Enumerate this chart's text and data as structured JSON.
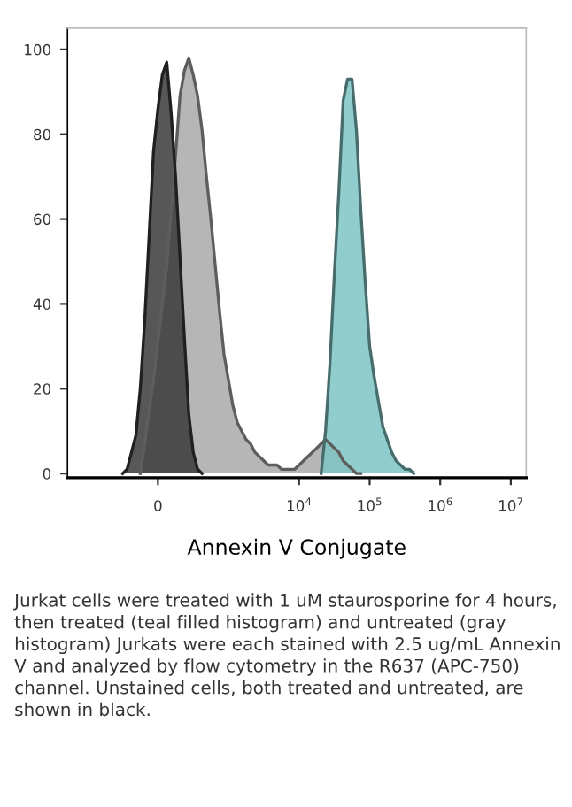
{
  "chart_data": {
    "type": "area",
    "xlabel": "Annexin V Conjugate",
    "categories": [
      null,
      null,
      null,
      null,
      null,
      null,
      null,
      null,
      null,
      null,
      null,
      null,
      null,
      null,
      null,
      null,
      null,
      null,
      null,
      null,
      "0",
      null,
      null,
      null,
      null,
      null,
      null,
      null,
      null,
      null,
      null,
      null,
      null,
      null,
      null,
      null,
      null,
      null,
      null,
      null,
      null,
      null,
      null,
      null,
      null,
      null,
      null,
      null,
      null,
      null,
      null,
      null,
      "10$^{4}$",
      null,
      null,
      null,
      null,
      null,
      null,
      null,
      null,
      null,
      null,
      null,
      null,
      null,
      null,
      null,
      "10$^{5}$",
      null,
      null,
      null,
      null,
      null,
      null,
      null,
      null,
      null,
      null,
      null,
      null,
      null,
      null,
      null,
      "10$^{6}$",
      null,
      null,
      null,
      null,
      null,
      null,
      null,
      null,
      null,
      null,
      null,
      null,
      null,
      null,
      null,
      "10$^{7}$",
      null,
      null,
      null
    ],
    "ylim": [
      -1,
      105
    ],
    "yticks": [
      0,
      20,
      40,
      60,
      80,
      100
    ],
    "grid": false,
    "legend": false,
    "series": [
      {
        "color": "#a9a9a9",
        "values": [
          null,
          null,
          null,
          null,
          null,
          null,
          null,
          null,
          null,
          null,
          null,
          null,
          null,
          null,
          null,
          null,
          0,
          7,
          15,
          22,
          31,
          40,
          49,
          62,
          75,
          89,
          95,
          98,
          94,
          89,
          81,
          70,
          60,
          49,
          38,
          28,
          22,
          16,
          12,
          10,
          8,
          7,
          5,
          4,
          3,
          2,
          2,
          2,
          1,
          1,
          1,
          1,
          2,
          3,
          4,
          5,
          6,
          7,
          8,
          7,
          6,
          5,
          3,
          2,
          1,
          0,
          0,
          null,
          null,
          null,
          null,
          null,
          null,
          null,
          null,
          null,
          null,
          null,
          null,
          null,
          null,
          null,
          null,
          null,
          null,
          null,
          null,
          null,
          null,
          null,
          null,
          null,
          null,
          null,
          null,
          null,
          null,
          null,
          null,
          null,
          null,
          null,
          null,
          null
        ]
      },
      {
        "color": "#7fc4c4",
        "values": [
          null,
          null,
          null,
          null,
          null,
          null,
          null,
          null,
          null,
          null,
          null,
          null,
          null,
          null,
          null,
          null,
          null,
          null,
          null,
          null,
          null,
          null,
          null,
          null,
          null,
          null,
          null,
          null,
          null,
          null,
          null,
          null,
          null,
          null,
          null,
          null,
          null,
          null,
          null,
          null,
          null,
          null,
          null,
          null,
          null,
          null,
          null,
          null,
          null,
          null,
          null,
          null,
          null,
          null,
          null,
          null,
          null,
          0,
          10,
          26,
          47,
          66,
          88,
          93,
          93,
          81,
          62,
          45,
          30,
          23,
          17,
          11,
          8,
          5,
          3,
          2,
          1,
          1,
          0,
          null,
          null,
          null,
          null,
          null,
          null,
          null,
          null,
          null,
          null,
          null,
          null,
          null,
          null,
          null,
          null,
          null,
          null,
          null,
          null,
          null,
          null,
          null,
          null,
          null
        ]
      },
      {
        "color": "#3a3a3a",
        "values": [
          null,
          null,
          null,
          null,
          null,
          null,
          null,
          null,
          null,
          null,
          null,
          null,
          0,
          1,
          5,
          9,
          20,
          36,
          56,
          76,
          86,
          94,
          97,
          85,
          70,
          51,
          32,
          14,
          5,
          1,
          0,
          null,
          null,
          null,
          null,
          null,
          null,
          null,
          null,
          null,
          null,
          null,
          null,
          null,
          null,
          null,
          null,
          null,
          null,
          null,
          null,
          null,
          null,
          null,
          null,
          null,
          null,
          null,
          null,
          null,
          null,
          null,
          null,
          null,
          null,
          null,
          null,
          null,
          null,
          null,
          null,
          null,
          null,
          null,
          null,
          null,
          null,
          null,
          null,
          null,
          null,
          null,
          null,
          null,
          null,
          null,
          null,
          null,
          null,
          null,
          null,
          null,
          null,
          null,
          null,
          null,
          null,
          null,
          null,
          null,
          null,
          null,
          null,
          null
        ]
      }
    ],
    "annotations": [
      "Jurkat cells were treated with 1 uM staurosporine for 4 hours, then treated (teal filled histogram) and untreated (gray histogram) Jurkats were each stained with 2.5 ug/mL Annexin V and analyzed by flow cytometry in the R637 (APC-750) channel. Unstained cells, both treated and untreated, are shown in black."
    ]
  }
}
